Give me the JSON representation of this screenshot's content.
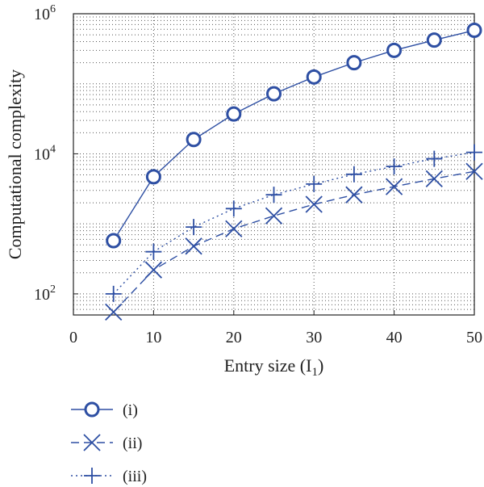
{
  "chart_data": {
    "type": "line",
    "xlabel": "Entry size (I",
    "xlabel_sub": "1",
    "xlabel_end": ")",
    "ylabel": "Computational complexity",
    "yscale": "log",
    "xlim": [
      0,
      50
    ],
    "ylim": [
      50,
      1000000
    ],
    "x_ticks": [
      0,
      10,
      20,
      30,
      40,
      50
    ],
    "y_ticks": [
      {
        "value": 100,
        "base": "10",
        "exp": "2"
      },
      {
        "value": 10000,
        "base": "10",
        "exp": "4"
      },
      {
        "value": 1000000,
        "base": "10",
        "exp": "6"
      }
    ],
    "grid": true,
    "color": "#2e4fa3",
    "x": [
      5,
      10,
      15,
      20,
      25,
      30,
      35,
      40,
      45,
      50
    ],
    "series": [
      {
        "name": "(i)",
        "marker": "circle",
        "dash": "solid",
        "values": [
          575,
          4700,
          16000,
          37000,
          72000,
          125000,
          200000,
          300000,
          420000,
          580000
        ]
      },
      {
        "name": "(ii)",
        "marker": "x",
        "dash": "dashed",
        "values": [
          55,
          220,
          480,
          850,
          1300,
          1900,
          2600,
          3400,
          4400,
          5600
        ]
      },
      {
        "name": "(iii)",
        "marker": "plus",
        "dash": "dotted",
        "values": [
          100,
          400,
          900,
          1650,
          2600,
          3700,
          5100,
          6600,
          8500,
          10500
        ]
      }
    ]
  }
}
